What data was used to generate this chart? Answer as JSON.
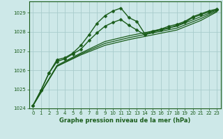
{
  "bg_color": "#cde8e8",
  "plot_bg_color": "#cde8e8",
  "grid_color": "#a8cccc",
  "line_color": "#1a5c1a",
  "xlabel": "Graphe pression niveau de la mer (hPa)",
  "ylim": [
    1024,
    1029.6
  ],
  "xlim": [
    -0.5,
    23.5
  ],
  "yticks": [
    1024,
    1025,
    1026,
    1027,
    1028,
    1029
  ],
  "xticks": [
    0,
    1,
    2,
    3,
    4,
    5,
    6,
    7,
    8,
    9,
    10,
    11,
    12,
    13,
    14,
    15,
    16,
    17,
    18,
    19,
    20,
    21,
    22,
    23
  ],
  "series": [
    {
      "x": [
        0,
        1,
        2,
        3,
        4,
        5,
        6,
        7,
        8,
        9,
        10,
        11,
        12,
        13,
        14,
        15,
        16,
        17,
        18,
        19,
        20,
        21,
        22,
        23
      ],
      "y": [
        1024.15,
        1024.95,
        1025.85,
        1026.55,
        1026.65,
        1026.9,
        1027.3,
        1027.85,
        1028.45,
        1028.85,
        1029.1,
        1029.25,
        1028.75,
        1028.55,
        1027.9,
        1028.05,
        1028.15,
        1028.3,
        1028.4,
        1028.55,
        1028.8,
        1028.95,
        1029.1,
        1029.2
      ],
      "marker": "D",
      "markersize": 2.5,
      "linewidth": 1.0
    },
    {
      "x": [
        0,
        1,
        2,
        3,
        4,
        5,
        6,
        7,
        8,
        9,
        10,
        11,
        12,
        13,
        14,
        15,
        16,
        17,
        18,
        19,
        20,
        21,
        22,
        23
      ],
      "y": [
        1024.15,
        1024.95,
        1025.85,
        1026.45,
        1026.6,
        1026.85,
        1027.1,
        1027.55,
        1027.95,
        1028.3,
        1028.5,
        1028.65,
        1028.35,
        1028.1,
        1027.85,
        1028.0,
        1028.1,
        1028.2,
        1028.35,
        1028.5,
        1028.75,
        1028.9,
        1029.05,
        1029.15
      ],
      "marker": "D",
      "markersize": 2.5,
      "linewidth": 1.0
    },
    {
      "x": [
        0,
        3,
        6,
        9,
        12,
        15,
        18,
        21,
        23
      ],
      "y": [
        1024.15,
        1026.2,
        1026.8,
        1027.3,
        1027.6,
        1027.85,
        1028.1,
        1028.6,
        1029.05
      ],
      "marker": null,
      "linewidth": 0.9
    },
    {
      "x": [
        0,
        3,
        6,
        9,
        12,
        15,
        18,
        21,
        23
      ],
      "y": [
        1024.15,
        1026.2,
        1026.85,
        1027.4,
        1027.7,
        1027.95,
        1028.2,
        1028.7,
        1029.1
      ],
      "marker": null,
      "linewidth": 0.9
    },
    {
      "x": [
        0,
        3,
        6,
        9,
        12,
        15,
        18,
        21,
        23
      ],
      "y": [
        1024.15,
        1026.25,
        1026.9,
        1027.5,
        1027.8,
        1028.05,
        1028.3,
        1028.8,
        1029.15
      ],
      "marker": null,
      "linewidth": 0.9
    }
  ]
}
